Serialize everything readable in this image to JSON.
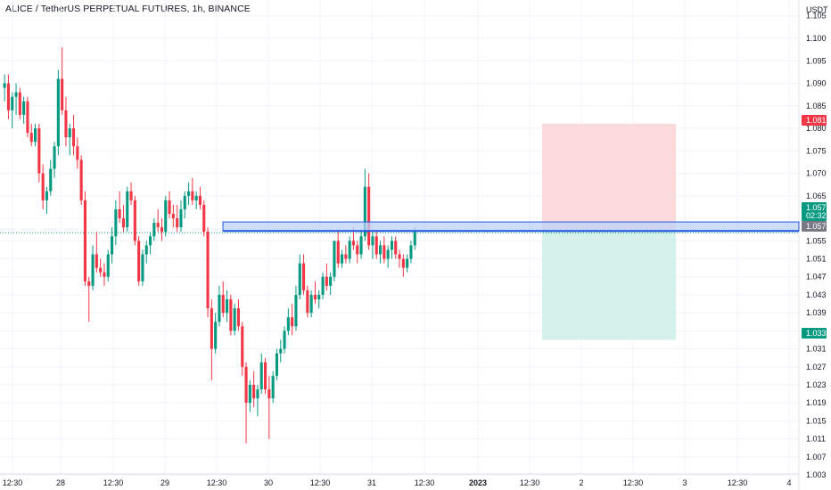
{
  "header": {
    "title": "ALICE / TetherUS PERPETUAL FUTURES, 1h, BINANCE"
  },
  "colors": {
    "up": "#089981",
    "down": "#f23645",
    "zone_fill": "#bbd3f7",
    "zone_border": "#1e53e5",
    "stop_fill": "#fbd3d6",
    "target_fill": "#cdeee6",
    "grid": "#f0f3fa",
    "current_line": "#089981"
  },
  "price_axis": {
    "unit": "USDT",
    "ticks": [
      "1.105",
      "1.100",
      "1.095",
      "1.090",
      "1.085",
      "1.080",
      "1.075",
      "1.070",
      "1.065",
      "1.060",
      "1.055",
      "1.051",
      "1.047",
      "1.043",
      "1.039",
      "1.035",
      "1.031",
      "1.027",
      "1.023",
      "1.019",
      "1.015",
      "1.011",
      "1.007",
      "1.003"
    ]
  },
  "time_axis": {
    "ticks": [
      {
        "label": "12:30",
        "bold": false
      },
      {
        "label": "28",
        "bold": false
      },
      {
        "label": "12:30",
        "bold": false
      },
      {
        "label": "29",
        "bold": false
      },
      {
        "label": "12:30",
        "bold": false
      },
      {
        "label": "30",
        "bold": false
      },
      {
        "label": "12:30",
        "bold": false
      },
      {
        "label": "31",
        "bold": false
      },
      {
        "label": "12:30",
        "bold": false
      },
      {
        "label": "2023",
        "bold": true
      },
      {
        "label": "12:30",
        "bold": false
      },
      {
        "label": "2",
        "bold": false
      },
      {
        "label": "12:30",
        "bold": false
      },
      {
        "label": "3",
        "bold": false
      },
      {
        "label": "12:30",
        "bold": false
      },
      {
        "label": "4",
        "bold": false
      }
    ]
  },
  "badges": {
    "stop": "1.081",
    "last_price": "1.057",
    "countdown": "02:32",
    "zone_level": "1.057",
    "target": "1.033"
  },
  "chart_data": {
    "type": "candlestick",
    "title": "ALICE / TetherUS PERPETUAL FUTURES, 1h, BINANCE",
    "symbol": "ALICE / TetherUS PERPETUAL FUTURES",
    "interval": "1h",
    "exchange": "BINANCE",
    "ylabel": "USDT",
    "ylim": [
      1.002,
      1.106
    ],
    "grid": true,
    "last_price": 1.057,
    "zone": {
      "low": 1.0572,
      "high": 1.0592
    },
    "position": {
      "entry": 1.0575,
      "stop": 1.081,
      "target": 1.033
    },
    "candles": [
      [
        1.089,
        1.092,
        1.086,
        1.09
      ],
      [
        1.09,
        1.092,
        1.082,
        1.084
      ],
      [
        1.084,
        1.088,
        1.08,
        1.087
      ],
      [
        1.087,
        1.09,
        1.083,
        1.088
      ],
      [
        1.088,
        1.089,
        1.082,
        1.083
      ],
      [
        1.083,
        1.087,
        1.081,
        1.086
      ],
      [
        1.086,
        1.087,
        1.078,
        1.079
      ],
      [
        1.079,
        1.081,
        1.076,
        1.077
      ],
      [
        1.077,
        1.081,
        1.076,
        1.08
      ],
      [
        1.08,
        1.081,
        1.068,
        1.07
      ],
      [
        1.07,
        1.072,
        1.062,
        1.064
      ],
      [
        1.064,
        1.067,
        1.061,
        1.066
      ],
      [
        1.066,
        1.073,
        1.065,
        1.071
      ],
      [
        1.071,
        1.077,
        1.069,
        1.076
      ],
      [
        1.076,
        1.093,
        1.074,
        1.091
      ],
      [
        1.091,
        1.098,
        1.083,
        1.084
      ],
      [
        1.084,
        1.087,
        1.076,
        1.078
      ],
      [
        1.078,
        1.081,
        1.074,
        1.08
      ],
      [
        1.08,
        1.083,
        1.074,
        1.076
      ],
      [
        1.076,
        1.078,
        1.071,
        1.073
      ],
      [
        1.073,
        1.074,
        1.063,
        1.064
      ],
      [
        1.064,
        1.066,
        1.045,
        1.046
      ],
      [
        1.046,
        1.047,
        1.037,
        1.045
      ],
      [
        1.045,
        1.054,
        1.044,
        1.052
      ],
      [
        1.052,
        1.057,
        1.048,
        1.049
      ],
      [
        1.049,
        1.051,
        1.047,
        1.048
      ],
      [
        1.048,
        1.05,
        1.045,
        1.047
      ],
      [
        1.047,
        1.053,
        1.046,
        1.052
      ],
      [
        1.052,
        1.058,
        1.05,
        1.056
      ],
      [
        1.056,
        1.064,
        1.054,
        1.062
      ],
      [
        1.062,
        1.066,
        1.059,
        1.06
      ],
      [
        1.06,
        1.063,
        1.057,
        1.058
      ],
      [
        1.058,
        1.067,
        1.057,
        1.066
      ],
      [
        1.066,
        1.068,
        1.063,
        1.064
      ],
      [
        1.064,
        1.065,
        1.054,
        1.055
      ],
      [
        1.055,
        1.056,
        1.045,
        1.046
      ],
      [
        1.046,
        1.053,
        1.045,
        1.052
      ],
      [
        1.052,
        1.055,
        1.05,
        1.054
      ],
      [
        1.054,
        1.057,
        1.052,
        1.056
      ],
      [
        1.056,
        1.06,
        1.055,
        1.059
      ],
      [
        1.059,
        1.062,
        1.057,
        1.058
      ],
      [
        1.058,
        1.06,
        1.055,
        1.057
      ],
      [
        1.057,
        1.065,
        1.056,
        1.064
      ],
      [
        1.064,
        1.066,
        1.06,
        1.061
      ],
      [
        1.061,
        1.063,
        1.058,
        1.06
      ],
      [
        1.06,
        1.063,
        1.057,
        1.058
      ],
      [
        1.058,
        1.064,
        1.057,
        1.062
      ],
      [
        1.062,
        1.066,
        1.06,
        1.065
      ],
      [
        1.065,
        1.068,
        1.063,
        1.066
      ],
      [
        1.066,
        1.069,
        1.063,
        1.064
      ],
      [
        1.064,
        1.066,
        1.062,
        1.065
      ],
      [
        1.065,
        1.067,
        1.062,
        1.063
      ],
      [
        1.063,
        1.064,
        1.056,
        1.057
      ],
      [
        1.057,
        1.058,
        1.038,
        1.04
      ],
      [
        1.04,
        1.042,
        1.024,
        1.031
      ],
      [
        1.031,
        1.039,
        1.03,
        1.037
      ],
      [
        1.037,
        1.045,
        1.036,
        1.043
      ],
      [
        1.043,
        1.046,
        1.038,
        1.039
      ],
      [
        1.039,
        1.044,
        1.037,
        1.042
      ],
      [
        1.042,
        1.043,
        1.034,
        1.035
      ],
      [
        1.035,
        1.041,
        1.034,
        1.04
      ],
      [
        1.04,
        1.042,
        1.035,
        1.036
      ],
      [
        1.036,
        1.037,
        1.025,
        1.027
      ],
      [
        1.027,
        1.028,
        1.01,
        1.019
      ],
      [
        1.019,
        1.024,
        1.017,
        1.023
      ],
      [
        1.023,
        1.026,
        1.018,
        1.02
      ],
      [
        1.02,
        1.023,
        1.016,
        1.022
      ],
      [
        1.022,
        1.03,
        1.021,
        1.028
      ],
      [
        1.028,
        1.029,
        1.021,
        1.022
      ],
      [
        1.022,
        1.025,
        1.011,
        1.02
      ],
      [
        1.02,
        1.026,
        1.019,
        1.025
      ],
      [
        1.025,
        1.031,
        1.024,
        1.03
      ],
      [
        1.03,
        1.033,
        1.028,
        1.031
      ],
      [
        1.031,
        1.036,
        1.03,
        1.035
      ],
      [
        1.035,
        1.04,
        1.034,
        1.038
      ],
      [
        1.038,
        1.041,
        1.034,
        1.036
      ],
      [
        1.036,
        1.045,
        1.035,
        1.043
      ],
      [
        1.043,
        1.052,
        1.042,
        1.05
      ],
      [
        1.05,
        1.052,
        1.043,
        1.044
      ],
      [
        1.044,
        1.045,
        1.038,
        1.039
      ],
      [
        1.039,
        1.044,
        1.038,
        1.043
      ],
      [
        1.043,
        1.046,
        1.041,
        1.042
      ],
      [
        1.042,
        1.044,
        1.04,
        1.043
      ],
      [
        1.043,
        1.048,
        1.042,
        1.047
      ],
      [
        1.047,
        1.05,
        1.044,
        1.045
      ],
      [
        1.045,
        1.048,
        1.043,
        1.047
      ],
      [
        1.047,
        1.055,
        1.046,
        1.055
      ],
      [
        1.055,
        1.057,
        1.049,
        1.05
      ],
      [
        1.05,
        1.053,
        1.049,
        1.052
      ],
      [
        1.052,
        1.054,
        1.05,
        1.051
      ],
      [
        1.051,
        1.056,
        1.05,
        1.055
      ],
      [
        1.055,
        1.058,
        1.053,
        1.054
      ],
      [
        1.054,
        1.055,
        1.05,
        1.052
      ],
      [
        1.052,
        1.057,
        1.051,
        1.056
      ],
      [
        1.056,
        1.071,
        1.055,
        1.067
      ],
      [
        1.067,
        1.07,
        1.053,
        1.054
      ],
      [
        1.054,
        1.057,
        1.051,
        1.056
      ],
      [
        1.056,
        1.057,
        1.051,
        1.052
      ],
      [
        1.052,
        1.055,
        1.05,
        1.054
      ],
      [
        1.054,
        1.056,
        1.05,
        1.051
      ],
      [
        1.051,
        1.054,
        1.049,
        1.053
      ],
      [
        1.053,
        1.056,
        1.051,
        1.055
      ],
      [
        1.055,
        1.056,
        1.051,
        1.052
      ],
      [
        1.052,
        1.053,
        1.049,
        1.051
      ],
      [
        1.051,
        1.052,
        1.047,
        1.049
      ],
      [
        1.049,
        1.052,
        1.048,
        1.051
      ],
      [
        1.051,
        1.055,
        1.05,
        1.054
      ],
      [
        1.054,
        1.058,
        1.053,
        1.057
      ]
    ]
  }
}
